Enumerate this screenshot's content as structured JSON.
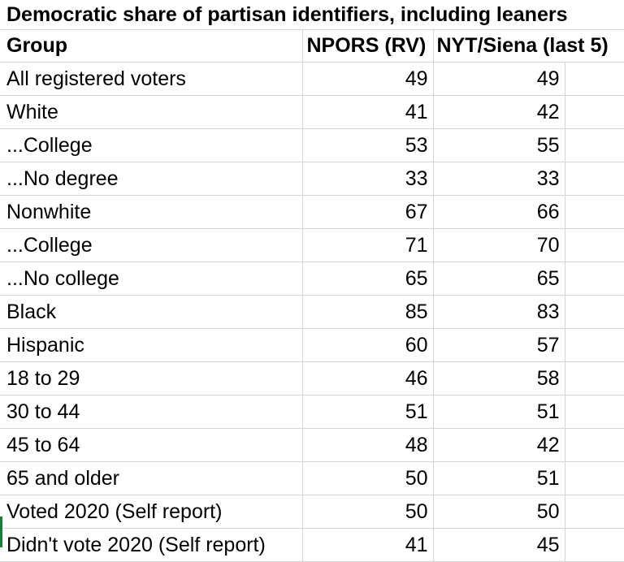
{
  "table": {
    "title": "Democratic share of partisan identifiers, including leaners",
    "columns": [
      "Group",
      "NPORS (RV)",
      "NYT/Siena (last 5)"
    ],
    "rows": [
      {
        "group": "All registered voters",
        "npors": "49",
        "nyt": "49"
      },
      {
        "group": "White",
        "npors": "41",
        "nyt": "42"
      },
      {
        "group": "...College",
        "npors": "53",
        "nyt": "55"
      },
      {
        "group": "...No degree",
        "npors": "33",
        "nyt": "33"
      },
      {
        "group": "Nonwhite",
        "npors": "67",
        "nyt": "66"
      },
      {
        "group": "...College",
        "npors": "71",
        "nyt": "70"
      },
      {
        "group": "...No college",
        "npors": "65",
        "nyt": "65"
      },
      {
        "group": "Black",
        "npors": "85",
        "nyt": "83"
      },
      {
        "group": "Hispanic",
        "npors": "60",
        "nyt": "57"
      },
      {
        "group": "18 to 29",
        "npors": "46",
        "nyt": "58"
      },
      {
        "group": "30 to 44",
        "npors": "51",
        "nyt": "51"
      },
      {
        "group": "45 to 64",
        "npors": "48",
        "nyt": "42"
      },
      {
        "group": "65 and older",
        "npors": "50",
        "nyt": "51"
      },
      {
        "group": "Voted 2020 (Self report)",
        "npors": "50",
        "nyt": "50"
      },
      {
        "group": "Didn't vote 2020 (Self report)",
        "npors": "41",
        "nyt": "45"
      }
    ]
  },
  "colors": {
    "gridline": "#d4d4d4",
    "active_cell_marker": "#1e7a3c"
  }
}
